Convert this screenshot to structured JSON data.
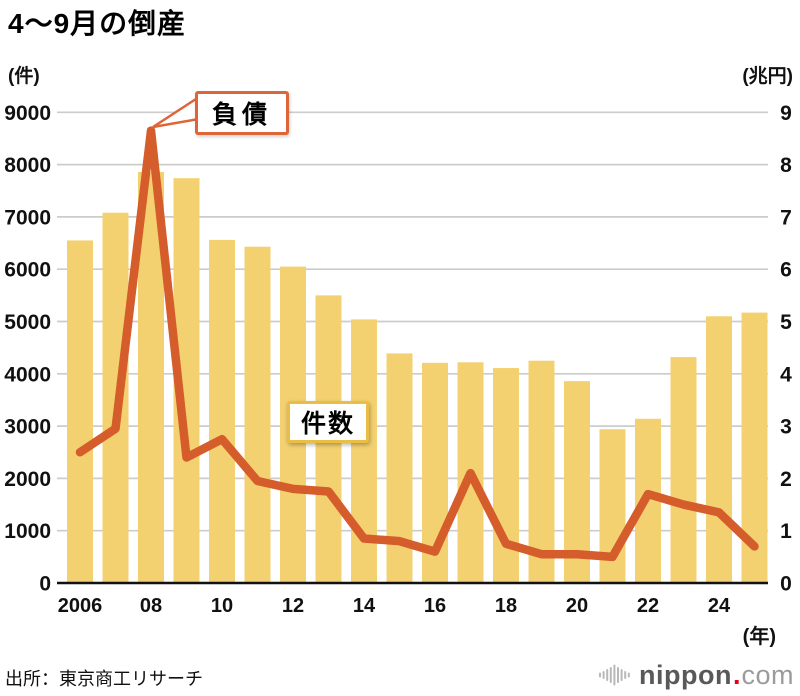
{
  "title": "4〜9月の倒産",
  "axes": {
    "left_unit": "(件)",
    "right_unit": "(兆円)",
    "x_unit": "(年)",
    "left_ticks": [
      "0",
      "1000",
      "2000",
      "3000",
      "4000",
      "5000",
      "6000",
      "7000",
      "8000",
      "9000"
    ],
    "right_ticks": [
      "0",
      "1",
      "2",
      "3",
      "4",
      "5",
      "6",
      "7",
      "8",
      "9"
    ],
    "x_ticks": [
      "2006",
      "08",
      "10",
      "12",
      "14",
      "16",
      "18",
      "20",
      "22",
      "24"
    ]
  },
  "callouts": {
    "line_label": "負債",
    "bar_label": "件数"
  },
  "source": "出所：東京商工リサーチ",
  "logo": {
    "brand": "nippon",
    "dot": ".",
    "suffix": "com"
  },
  "colors": {
    "bar": "#F4D170",
    "line": "#D55C2B",
    "line_callout_border": "#DE6537",
    "bar_callout_border": "#EABD45",
    "grid": "#CCCCCC",
    "axis": "#111111"
  },
  "chart_data": {
    "type": "bar+line combo",
    "title": "4〜9月の倒産",
    "categories": [
      2006,
      2007,
      2008,
      2009,
      2010,
      2011,
      2012,
      2013,
      2014,
      2015,
      2016,
      2017,
      2018,
      2019,
      2020,
      2021,
      2022,
      2023,
      2024,
      2025
    ],
    "series": [
      {
        "name": "件数",
        "type": "bar",
        "axis": "left",
        "unit": "件",
        "values": [
          6550,
          7080,
          7860,
          7740,
          6560,
          6430,
          6050,
          5500,
          5040,
          4390,
          4210,
          4220,
          4110,
          4250,
          3860,
          2940,
          3140,
          4320,
          5100,
          5170
        ]
      },
      {
        "name": "負債",
        "type": "line",
        "axis": "right",
        "unit": "兆円",
        "values": [
          2.5,
          2.95,
          8.65,
          2.4,
          2.75,
          1.95,
          1.8,
          1.75,
          0.85,
          0.8,
          0.6,
          2.1,
          0.75,
          0.55,
          0.55,
          0.5,
          1.7,
          1.5,
          1.35,
          0.7
        ]
      }
    ],
    "left_ylim": [
      0,
      9000
    ],
    "right_ylim": [
      0,
      9
    ],
    "grid": "horizontal gridlines every 1000 / 1",
    "legend": "callout boxes on plot (負債 points to 2008 peak, 件数 floats over bars)",
    "x_tick_step": 2,
    "source": "出所：東京商工リサーチ"
  }
}
